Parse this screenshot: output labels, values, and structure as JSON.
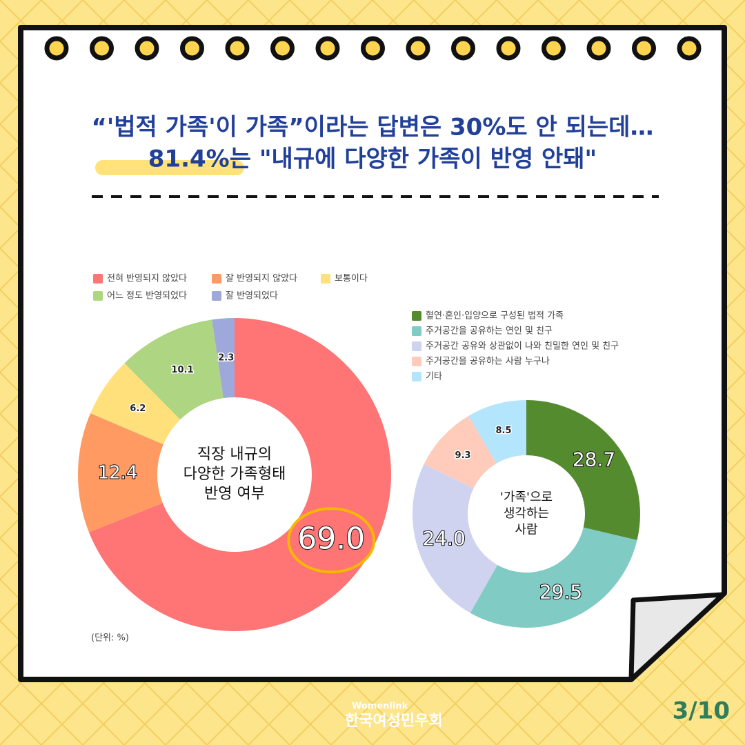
{
  "header": {
    "title_lines": [
      "“'법적 가족'이 가족”이라는 답변은 30%도 안 되는데…",
      "81.4%는 \"내규에 다양한 가족이 반영 안돼\""
    ]
  },
  "chart_data": [
    {
      "type": "pie",
      "title": [
        "직장 내규의",
        "다양한 가족형태",
        "반영 여부"
      ],
      "categories": [
        "전혀 반영되지 않았다",
        "잘 반영되지 않았다",
        "보통이다",
        "어느 정도 반영되었다",
        "잘 반영되었다"
      ],
      "values": [
        69.0,
        12.4,
        6.2,
        10.1,
        2.3
      ],
      "value_labels": [
        "69.0",
        "12.4",
        "6.2",
        "10.1",
        "2.3"
      ],
      "colors": [
        "#ff7474",
        "#ff9a62",
        "#ffe07a",
        "#aed581",
        "#9fa8da"
      ],
      "note": "(단위: %)"
    },
    {
      "type": "pie",
      "title": [
        "'가족'으로",
        "생각하는",
        "사람"
      ],
      "categories": [
        "혈연·혼인·입양으로 구성된 법적 가족",
        "주거공간을 공유하는 연인 및 친구",
        "주거공간 공유와  상관없이 나와 친밀한 연인 및 친구",
        "주거공간을 공유하는 사람 누구나",
        "기타"
      ],
      "values": [
        28.7,
        29.5,
        24.0,
        9.3,
        8.5
      ],
      "value_labels": [
        "28.7",
        "29.5",
        "24.0",
        "9.3",
        "8.5"
      ],
      "colors": [
        "#558b2f",
        "#80cbc4",
        "#cfd3f0",
        "#ffccbc",
        "#b3e5fc"
      ]
    }
  ],
  "footer": {
    "org_en": "Womenlink",
    "org_ko": "한국여성민우회",
    "page": "3/10"
  }
}
